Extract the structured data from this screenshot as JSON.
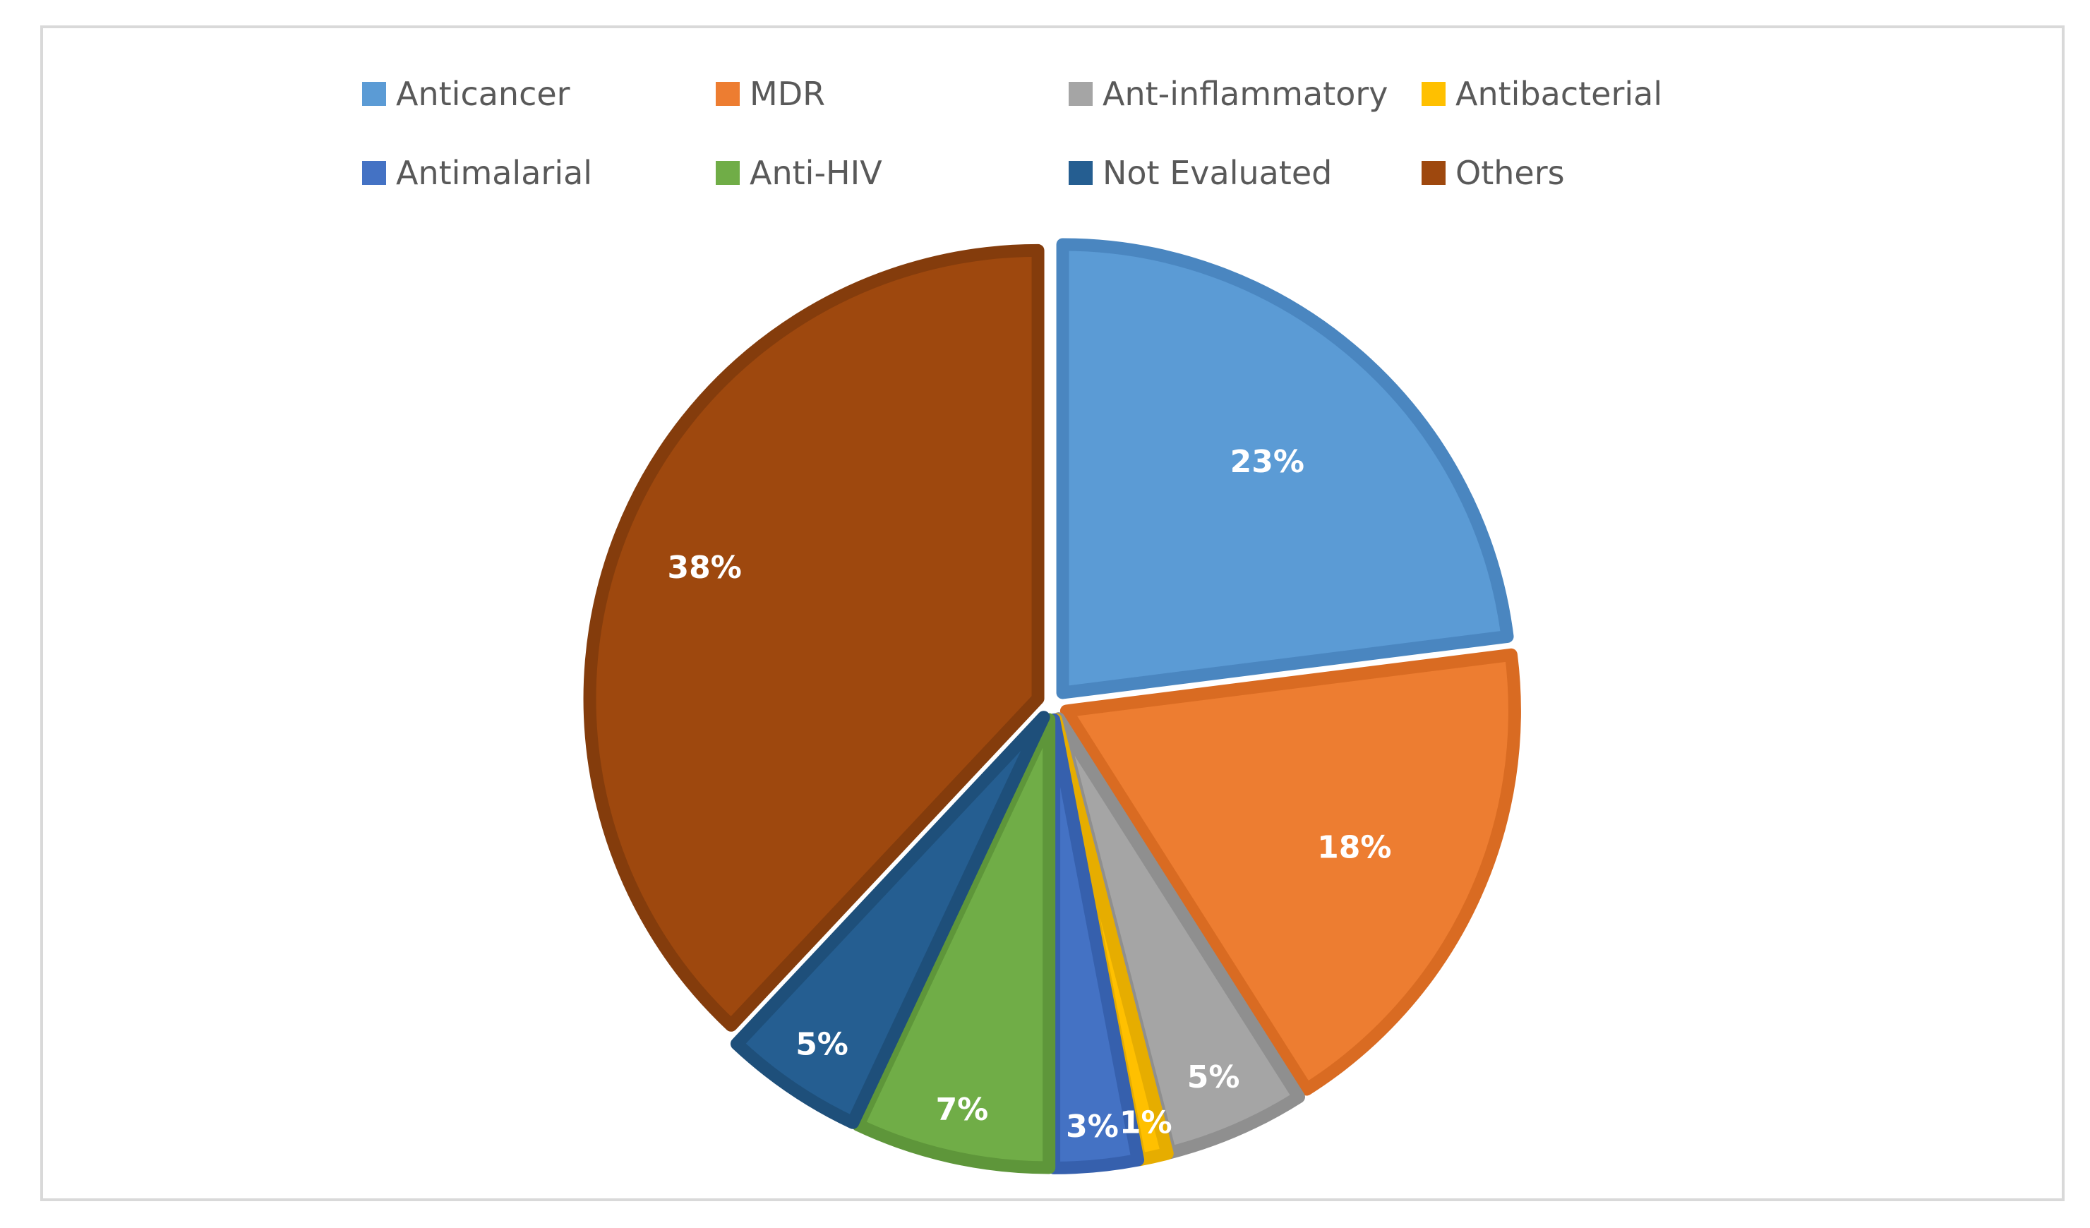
{
  "chart_data": {
    "type": "pie",
    "title": "",
    "categories": [
      "Anticancer",
      "MDR",
      "Ant-inflammatory",
      "Antibacterial",
      "Antimalarial",
      "Anti-HIV",
      "Not Evaluated",
      "Others"
    ],
    "values": [
      23,
      18,
      5,
      1,
      3,
      7,
      5,
      38
    ],
    "labels": [
      "23%",
      "18%",
      "5%",
      "1%",
      "3%",
      "7%",
      "5%",
      "38%"
    ],
    "colors": [
      "#5b9bd5",
      "#ed7d31",
      "#a5a5a5",
      "#ffc000",
      "#4472c4",
      "#70ad47",
      "#255e91",
      "#9e480e"
    ],
    "border_colors": [
      "#4a86c0",
      "#d96b22",
      "#8f8f8f",
      "#e6ad00",
      "#3660ad",
      "#5e963a",
      "#1e4f7a",
      "#843c0c"
    ],
    "legend_position": "top",
    "exploded": true
  }
}
